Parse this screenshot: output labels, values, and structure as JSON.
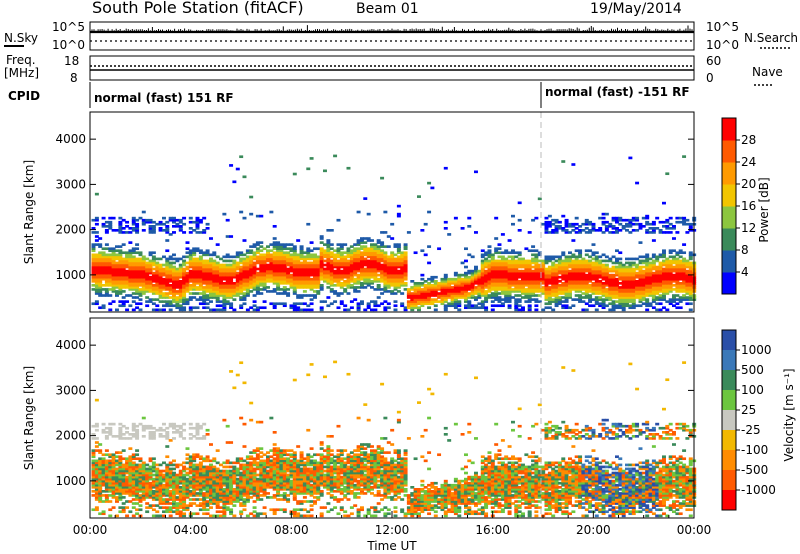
{
  "header": {
    "station": "South Pole Station (fitACF)",
    "beam": "Beam 01",
    "date": "19/May/2014"
  },
  "noise_panel": {
    "left_label": "N.Sky",
    "right_label": "N.Search",
    "tick_top": "10^5",
    "tick_bottom": "10^0"
  },
  "freq_panel": {
    "left_label_1": "Freq.",
    "left_label_2": "[MHz]",
    "right_label": "Nave",
    "left_ticks": [
      "18",
      "8"
    ],
    "right_ticks": [
      "60",
      "0"
    ]
  },
  "cpid_panel": {
    "label": "CPID",
    "segments": [
      {
        "start_hour": 0,
        "text": "normal (fast) 151 RF"
      },
      {
        "start_hour": 18,
        "text": "normal (fast) -151 RF"
      }
    ]
  },
  "chart_data": [
    {
      "type": "heatmap",
      "name": "power",
      "xlabel": "",
      "ylabel": "Slant Range [km]",
      "xlim_hours": [
        0,
        24
      ],
      "ylim": [
        180,
        4600
      ],
      "yticks": [
        1000,
        2000,
        3000,
        4000
      ],
      "colorbar": {
        "label": "Power [dB]",
        "ticks": [
          "4",
          "8",
          "12",
          "16",
          "20",
          "24",
          "28"
        ],
        "colors": [
          "#0000ff",
          "#1e5aa8",
          "#3a8a5a",
          "#8cc63f",
          "#f2c500",
          "#ff9a00",
          "#ff5a00",
          "#ff0000"
        ]
      }
    },
    {
      "type": "heatmap",
      "name": "velocity",
      "xlabel": "Time UT",
      "ylabel": "Slant Range [km]",
      "xlim_hours": [
        0,
        24
      ],
      "ylim": [
        180,
        4600
      ],
      "yticks": [
        1000,
        2000,
        3000,
        4000
      ],
      "xticks": [
        "00:00",
        "04:00",
        "08:00",
        "12:00",
        "16:00",
        "20:00",
        "00:00"
      ],
      "colorbar": {
        "label": "Velocity [m s⁻¹]",
        "ticks": [
          "1000",
          "500",
          "100",
          "25",
          "-25",
          "-100",
          "-500",
          "-1000"
        ],
        "colors": [
          "#2a4fa8",
          "#3a78b8",
          "#3a8a5a",
          "#6cc63f",
          "#c8c8c0",
          "#f2b800",
          "#ff8c00",
          "#ff5a00",
          "#ff0000"
        ]
      }
    }
  ]
}
